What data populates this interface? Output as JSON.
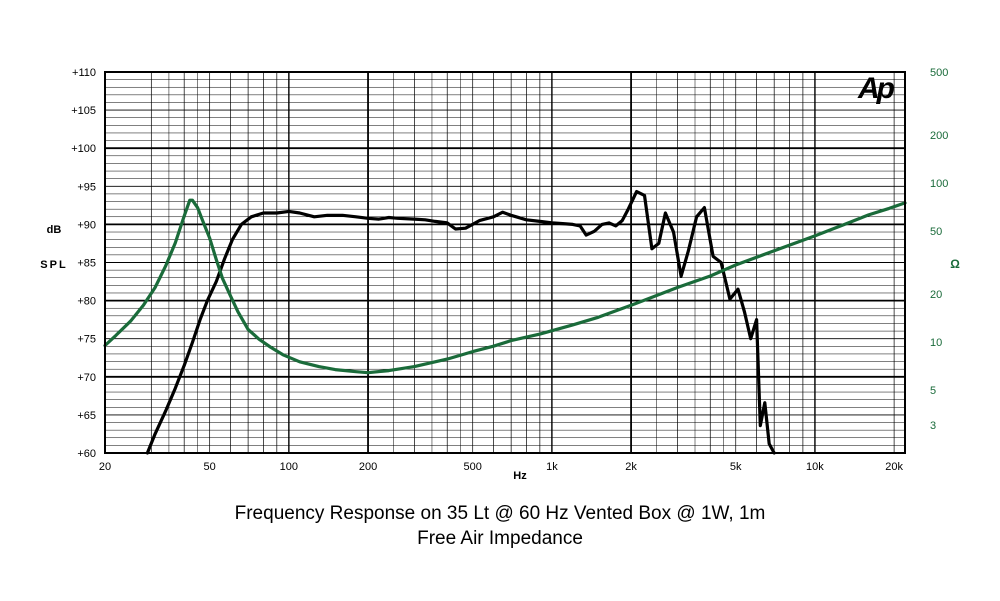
{
  "chart_data": {
    "type": "line",
    "title": "Frequency Response on 35 Lt @ 60 Hz Vented Box @ 1W, 1m",
    "subtitle": "Free Air Impedance",
    "xlabel": "Hz",
    "ylabel": "dB SPL",
    "y2label": "Ω",
    "x_scale": "log",
    "xlim": [
      20,
      22000
    ],
    "ylim": [
      60,
      110
    ],
    "y2_scale": "log",
    "y2lim": [
      2,
      500
    ],
    "grid": true,
    "logo": "Ap",
    "x_ticks": [
      "20",
      "50",
      "100",
      "200",
      "500",
      "1k",
      "2k",
      "5k",
      "10k",
      "20k"
    ],
    "x_tick_values": [
      20,
      50,
      100,
      200,
      500,
      1000,
      2000,
      5000,
      10000,
      20000
    ],
    "y_ticks": [
      "+110",
      "+105",
      "+100",
      "+95",
      "+90",
      "+85",
      "+80",
      "+75",
      "+70",
      "+65",
      "+60"
    ],
    "y_tick_values": [
      110,
      105,
      100,
      95,
      90,
      85,
      80,
      75,
      70,
      65,
      60
    ],
    "y2_ticks": [
      "500",
      "200",
      "100",
      "50",
      "20",
      "10",
      "5",
      "3"
    ],
    "y2_tick_values": [
      500,
      200,
      100,
      50,
      20,
      10,
      5,
      3
    ],
    "colors": {
      "spl": "#000000",
      "impedance": "#1a6b3a",
      "grid": "#000000"
    },
    "series": [
      {
        "axis": "left",
        "color": "#000000",
        "x": [
          29,
          31,
          34,
          37,
          40,
          43,
          46,
          49,
          53,
          57,
          61,
          66,
          72,
          80,
          90,
          100,
          110,
          125,
          140,
          160,
          180,
          200,
          220,
          240,
          260,
          300,
          330,
          360,
          400,
          430,
          470,
          530,
          600,
          650,
          700,
          800,
          900,
          1000,
          1100,
          1200,
          1280,
          1350,
          1450,
          1550,
          1650,
          1750,
          1850,
          1950,
          2100,
          2250,
          2400,
          2550,
          2700,
          2900,
          3100,
          3300,
          3550,
          3800,
          4100,
          4400,
          4750,
          5100,
          5400,
          5700,
          6000,
          6200,
          6450,
          6700,
          7000
        ],
        "y": [
          60,
          62.5,
          65.5,
          68.5,
          71.5,
          74.5,
          77.5,
          80,
          82.5,
          85.5,
          88,
          90,
          91,
          91.5,
          91.5,
          91.7,
          91.5,
          91,
          91.2,
          91.2,
          91,
          90.8,
          90.7,
          90.9,
          90.8,
          90.7,
          90.6,
          90.4,
          90.2,
          89.4,
          89.5,
          90.5,
          91,
          91.6,
          91.2,
          90.6,
          90.4,
          90.2,
          90.1,
          90,
          89.8,
          88.6,
          89.1,
          90,
          90.2,
          89.8,
          90.5,
          92,
          94.3,
          93.8,
          86.8,
          87.5,
          91.5,
          89,
          83.2,
          86.5,
          91,
          92.2,
          85.8,
          85,
          80.2,
          81.5,
          78.5,
          75,
          77.5,
          63.6,
          66.6,
          61.2,
          60
        ]
      },
      {
        "axis": "right",
        "color": "#1a6b3a",
        "x": [
          20,
          22,
          25,
          28,
          31,
          34,
          37,
          40,
          42,
          43,
          45,
          47,
          50,
          53,
          56,
          60,
          64,
          70,
          77,
          85,
          95,
          110,
          130,
          150,
          180,
          200,
          240,
          300,
          400,
          500,
          600,
          700,
          900,
          1200,
          1500,
          2000,
          3000,
          4000,
          5000,
          7000,
          10000,
          13000,
          16000,
          19000,
          22000
        ],
        "y": [
          9.5,
          11,
          13.5,
          17,
          22,
          30,
          42,
          62,
          78,
          78,
          70,
          58,
          45,
          33,
          25,
          19.5,
          15.5,
          12,
          10.4,
          9.3,
          8.3,
          7.5,
          7,
          6.7,
          6.5,
          6.4,
          6.6,
          7,
          7.8,
          8.7,
          9.4,
          10.2,
          11.2,
          12.8,
          14.3,
          17,
          22,
          26,
          30.5,
          37.5,
          46.5,
          55,
          63,
          69,
          75
        ]
      }
    ]
  },
  "labels": {
    "caption_line1": "Frequency Response on 35 Lt @ 60 Hz Vented Box @ 1W, 1m",
    "caption_line2": "Free Air Impedance"
  }
}
